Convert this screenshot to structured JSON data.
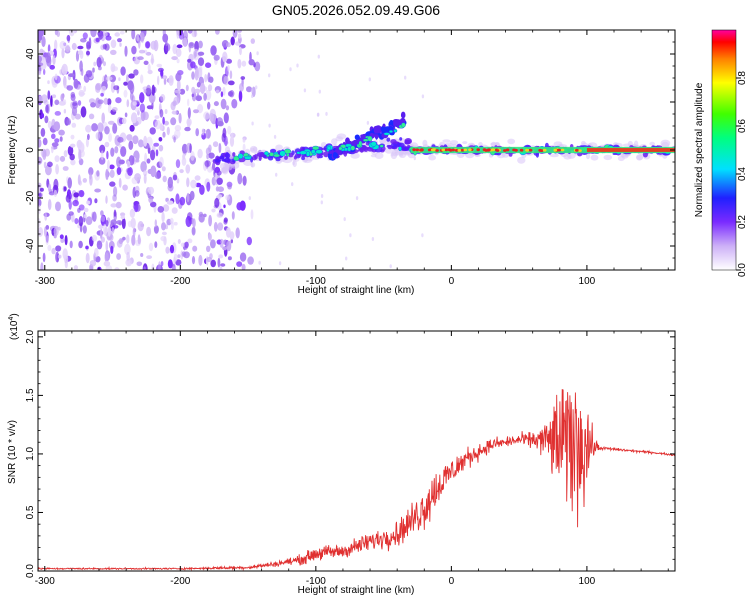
{
  "title": "GN05.2026.052.09.49.G06",
  "chart_data": [
    {
      "type": "heatmap",
      "name": "spectrogram",
      "xlabel": "Height of straight line (km)",
      "ylabel": "Frequency (Hz)",
      "xlim": [
        -305,
        165
      ],
      "ylim": [
        -50,
        50
      ],
      "xticks": [
        -300,
        -200,
        -100,
        0,
        100
      ],
      "yticks": [
        -40,
        -20,
        0,
        20,
        40
      ],
      "colorbar": {
        "label": "Normalized spectral amplitude",
        "range": [
          0.0,
          1.0
        ],
        "ticks": [
          "0.0",
          "0.2",
          "0.4",
          "0.6",
          "0.8"
        ]
      }
    },
    {
      "type": "line",
      "name": "snr",
      "xlabel": "Height of straight line (km)",
      "ylabel": "SNR (10 * v/v)",
      "multiplier_label": "(x10",
      "multiplier_exp": "4",
      "multiplier_close": ")",
      "xlim": [
        -305,
        165
      ],
      "ylim": [
        0,
        2.05
      ],
      "xticks": [
        -300,
        -200,
        -100,
        0,
        100
      ],
      "yticks": [
        "0.0",
        "0.5",
        "1.0",
        "1.5",
        "2.0"
      ],
      "line_color": "#e03030",
      "envelope": {
        "x": [
          -305,
          -200,
          -150,
          -130,
          -110,
          -100,
          -80,
          -60,
          -40,
          -30,
          -20,
          -10,
          0,
          10,
          20,
          30,
          40,
          50,
          60,
          70,
          80,
          90,
          100,
          105,
          110,
          130,
          150,
          165
        ],
        "y": [
          0.02,
          0.02,
          0.03,
          0.06,
          0.1,
          0.15,
          0.17,
          0.25,
          0.32,
          0.42,
          0.55,
          0.72,
          0.85,
          0.95,
          1.02,
          1.08,
          1.1,
          1.12,
          1.12,
          1.12,
          1.1,
          1.1,
          1.08,
          1.06,
          1.05,
          1.03,
          1.01,
          0.99
        ]
      },
      "noise": {
        "x": [
          -305,
          -200,
          -150,
          -120,
          -100,
          -80,
          -60,
          -40,
          -30,
          -20,
          -10,
          0,
          10,
          20,
          30,
          40,
          50,
          60,
          70,
          75,
          80,
          85,
          90,
          95,
          100,
          105,
          110,
          165
        ],
        "amp": [
          0.01,
          0.01,
          0.02,
          0.04,
          0.09,
          0.09,
          0.12,
          0.16,
          0.2,
          0.3,
          0.25,
          0.18,
          0.14,
          0.1,
          0.08,
          0.07,
          0.08,
          0.1,
          0.25,
          0.5,
          0.7,
          0.8,
          0.95,
          0.9,
          0.6,
          0.15,
          0.02,
          0.01
        ]
      }
    }
  ]
}
